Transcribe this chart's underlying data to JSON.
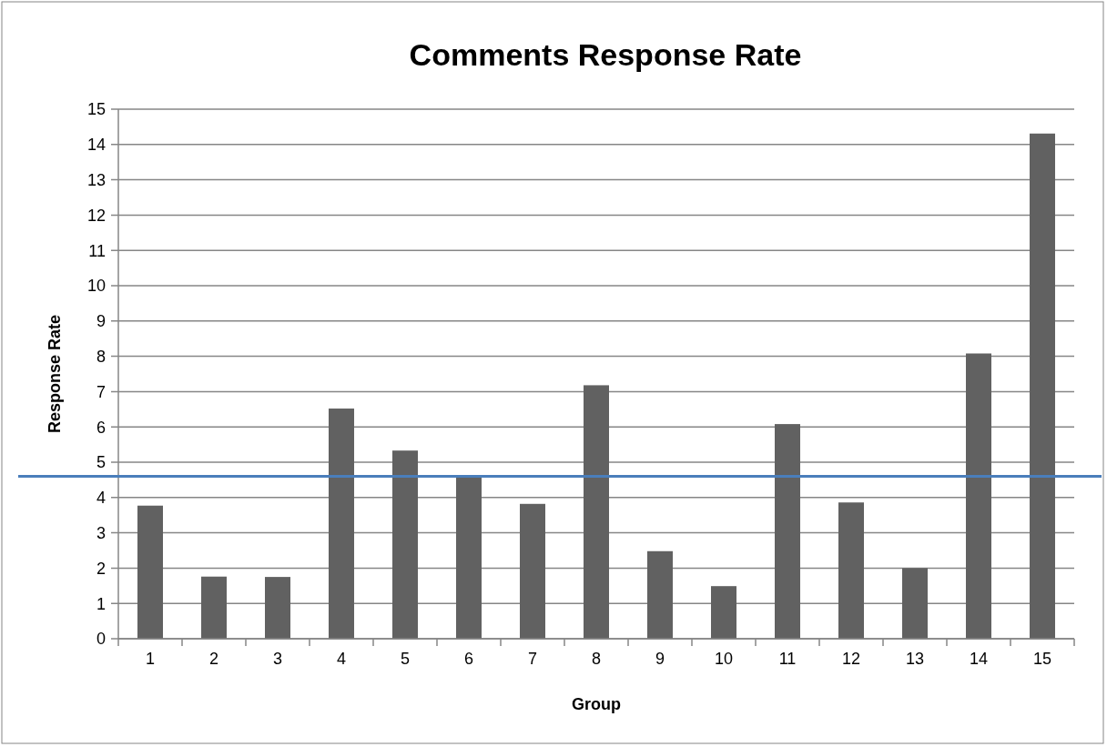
{
  "chart_data": {
    "type": "bar",
    "title": "Comments Response Rate",
    "xlabel": "Group",
    "ylabel": "Response Rate",
    "categories": [
      "1",
      "2",
      "3",
      "4",
      "5",
      "6",
      "7",
      "8",
      "9",
      "10",
      "11",
      "12",
      "13",
      "14",
      "15"
    ],
    "values": [
      3.77,
      1.76,
      1.75,
      6.52,
      5.33,
      4.6,
      3.82,
      7.18,
      2.48,
      1.49,
      6.08,
      3.86,
      2.0,
      8.08,
      14.31
    ],
    "color": "#616161",
    "ylim": [
      0,
      15
    ],
    "yticks": [
      0,
      1,
      2,
      3,
      4,
      5,
      6,
      7,
      8,
      9,
      10,
      11,
      12,
      13,
      14,
      15
    ],
    "grid": "y",
    "ref_lines": [
      {
        "axis": "y",
        "value": 4.6,
        "color": "#4a7ebb"
      }
    ]
  }
}
